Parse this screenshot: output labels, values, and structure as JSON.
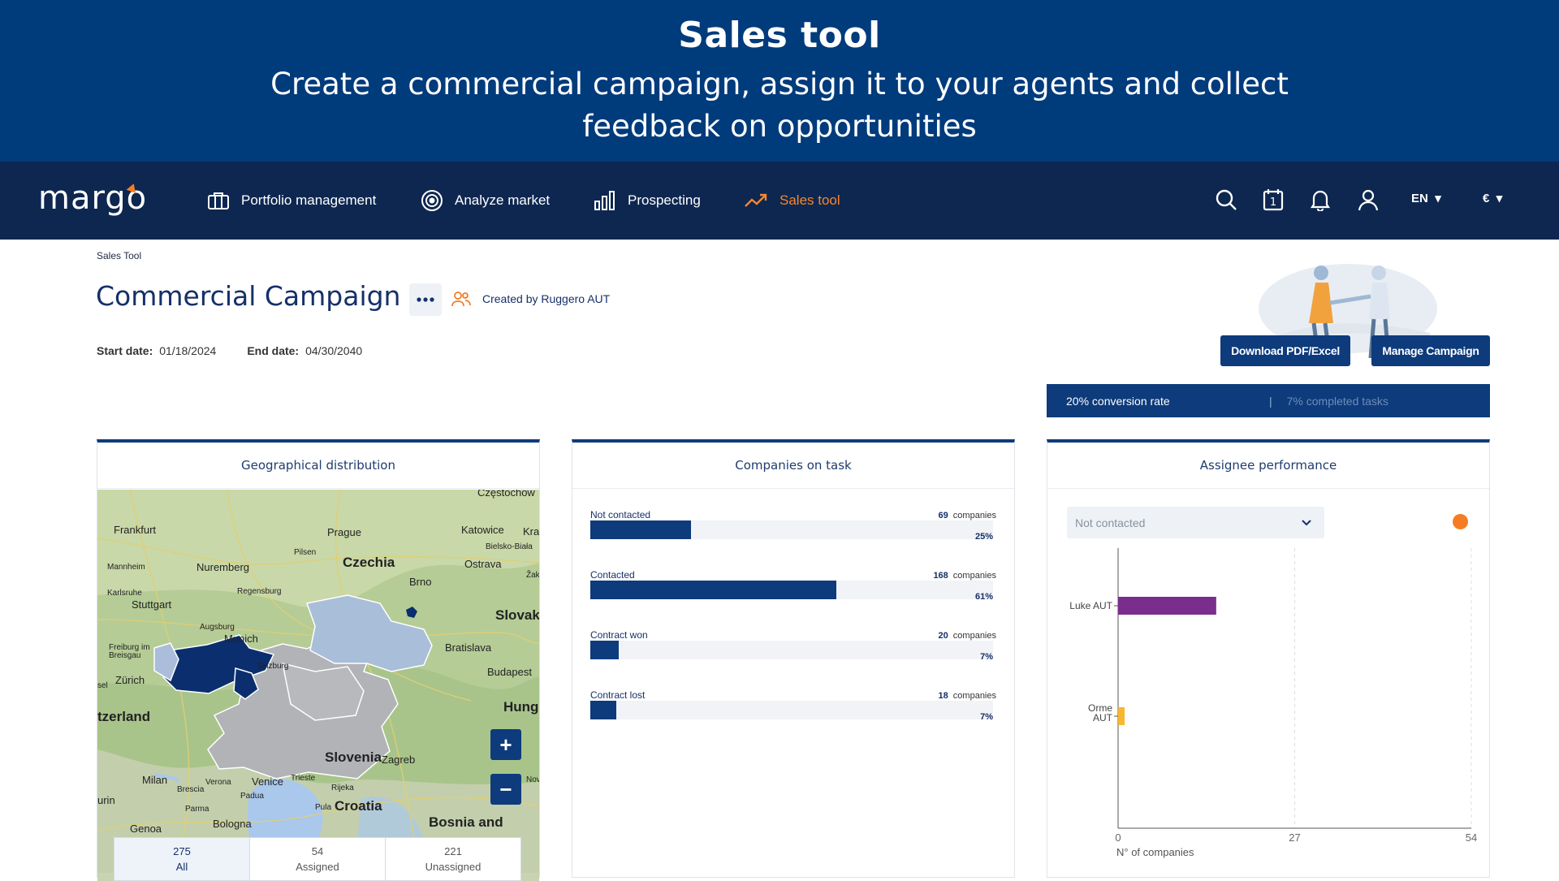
{
  "banner": {
    "title": "Sales tool",
    "subtitle": "Create a commercial campaign, assign it to your agents and collect feedback on opportunities"
  },
  "nav": {
    "logo": "margo",
    "items": [
      {
        "label": "Portfolio management",
        "icon": "briefcase-icon"
      },
      {
        "label": "Analyze market",
        "icon": "target-icon"
      },
      {
        "label": "Prospecting",
        "icon": "bar-chart-icon"
      },
      {
        "label": "Sales tool",
        "icon": "trend-up-icon",
        "active": true
      }
    ],
    "language": "EN",
    "currency": "€",
    "icons": [
      "search-icon",
      "calendar-icon",
      "bell-icon",
      "user-icon"
    ],
    "calendar_day": "1"
  },
  "page": {
    "breadcrumb": "Sales Tool",
    "title": "Commercial Campaign",
    "created_by": "Created by Ruggero AUT",
    "start_label": "Start date:",
    "start_date": "01/18/2024",
    "end_label": "End date:",
    "end_date": "04/30/2040",
    "download_button": "Download PDF/Excel",
    "manage_button": "Manage Campaign",
    "conversion_rate": "20% conversion rate",
    "completed_tasks": "7% completed tasks",
    "accent_color": "#0d3b7c",
    "highlight_color": "#f57c23"
  },
  "geo": {
    "title": "Geographical distribution",
    "labels": {
      "czestochowa": "Częstochow",
      "frankfurt": "Frankfurt",
      "prague": "Prague",
      "katowice": "Katowice",
      "kra": "Kra",
      "bielsko": "Bielsko-Biała",
      "pilsen": "Pilsen",
      "czechia": "Czechia",
      "ostrava": "Ostrava",
      "mannheim": "Mannheim",
      "nuremberg": "Nuremberg",
      "zak": "Žak",
      "karlsruhe": "Karlsruhe",
      "regensburg": "Regensburg",
      "brno": "Brno",
      "stuttgart": "Stuttgart",
      "slovak": "Slovak",
      "augsburg": "Augsburg",
      "munich": "Munich",
      "bratislava": "Bratislava",
      "freiburg": "Freiburg im Breisgau",
      "salzburg": "Salzburg",
      "sel": "sel",
      "zurich": "Zürich",
      "budapest": "Budapest",
      "hung": "Hung",
      "tzerland": "tzerland",
      "slovenia": "Slovenia",
      "zagreb": "Zagreb",
      "milan": "Milan",
      "verona": "Verona",
      "venice": "Venice",
      "trieste": "Trieste",
      "rijeka": "Rijeka",
      "novi": "Novi",
      "brescia": "Brescia",
      "urin": "urin",
      "padua": "Padua",
      "croatia": "Croatia",
      "pula": "Pula",
      "parma": "Parma",
      "bosnia": "Bosnia and",
      "genoa": "Genoa",
      "bologna": "Bologna"
    },
    "stats": [
      {
        "value": "275",
        "label": "All"
      },
      {
        "value": "54",
        "label": "Assigned"
      },
      {
        "value": "221",
        "label": "Unassigned"
      }
    ]
  },
  "companies": {
    "title": "Companies on task",
    "unit": "companies",
    "rows": [
      {
        "label": "Not contacted",
        "count": "69",
        "pct": "25%",
        "fraction": 0.25
      },
      {
        "label": "Contacted",
        "count": "168",
        "pct": "61%",
        "fraction": 0.61
      },
      {
        "label": "Contract won",
        "count": "20",
        "pct": "7%",
        "fraction": 0.07
      },
      {
        "label": "Contract lost",
        "count": "18",
        "pct": "7%",
        "fraction": 0.065
      }
    ]
  },
  "assignee": {
    "title": "Assignee performance",
    "filter_value": "Not contacted",
    "chart_data": {
      "type": "bar",
      "orientation": "horizontal",
      "categories": [
        "Luke AUT",
        "Orme AUT"
      ],
      "values": [
        15,
        1
      ],
      "colors": [
        "#7b2d8e",
        "#f5b82e"
      ],
      "xlabel": "N° of companies",
      "xlim": [
        0,
        54
      ],
      "xticks": [
        "0",
        "27",
        "54"
      ],
      "grid": "vertical dashed"
    }
  }
}
